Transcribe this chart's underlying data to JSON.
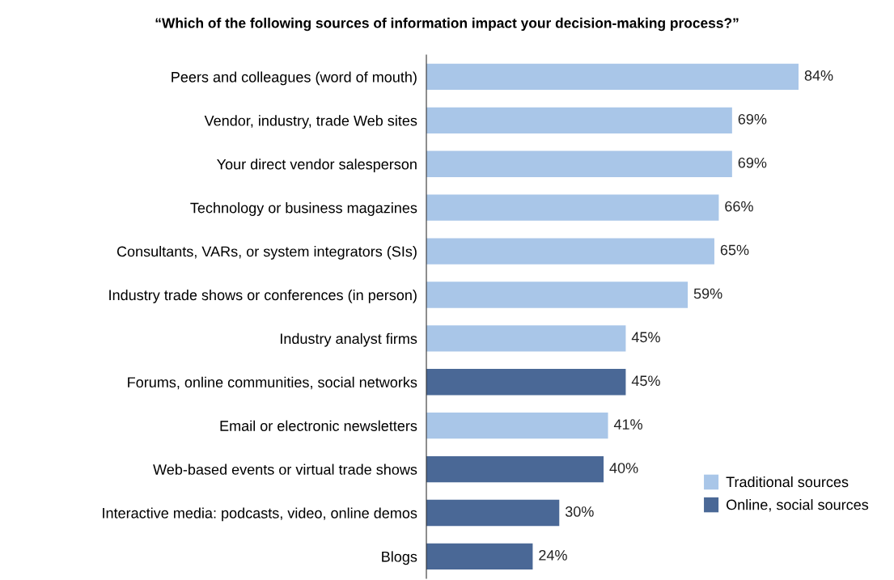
{
  "chart_data": {
    "type": "bar",
    "orientation": "horizontal",
    "title": "“Which of the following sources of information impact your decision-making process?”",
    "categories": [
      "Peers and colleagues (word of mouth)",
      "Vendor, industry, trade Web sites",
      "Your direct vendor salesperson",
      "Technology or business magazines",
      "Consultants, VARs, or system integrators (SIs)",
      "Industry trade shows or conferences (in person)",
      "Industry analyst firms",
      "Forums, online communities, social networks",
      "Email or electronic newsletters",
      "Web-based events or virtual trade shows",
      "Interactive media: podcasts, video, online demos",
      "Blogs"
    ],
    "series": [
      {
        "name": "Traditional sources",
        "color": "#a9c6e8",
        "values": [
          84,
          69,
          69,
          66,
          65,
          59,
          45,
          null,
          41,
          null,
          null,
          null
        ],
        "value_labels": [
          "84%",
          "69%",
          "69%",
          "66%",
          "65%",
          "59%",
          "45%",
          null,
          "41%",
          null,
          null,
          null
        ]
      },
      {
        "name": "Online, social sources",
        "color": "#4a6896",
        "values": [
          null,
          null,
          null,
          null,
          null,
          null,
          null,
          45,
          null,
          40,
          30,
          24
        ],
        "value_labels": [
          null,
          null,
          null,
          null,
          null,
          null,
          null,
          "45%",
          null,
          "40%",
          "30%",
          "24%"
        ]
      }
    ],
    "legend": "bottom right",
    "tick_labels": "y"
  }
}
